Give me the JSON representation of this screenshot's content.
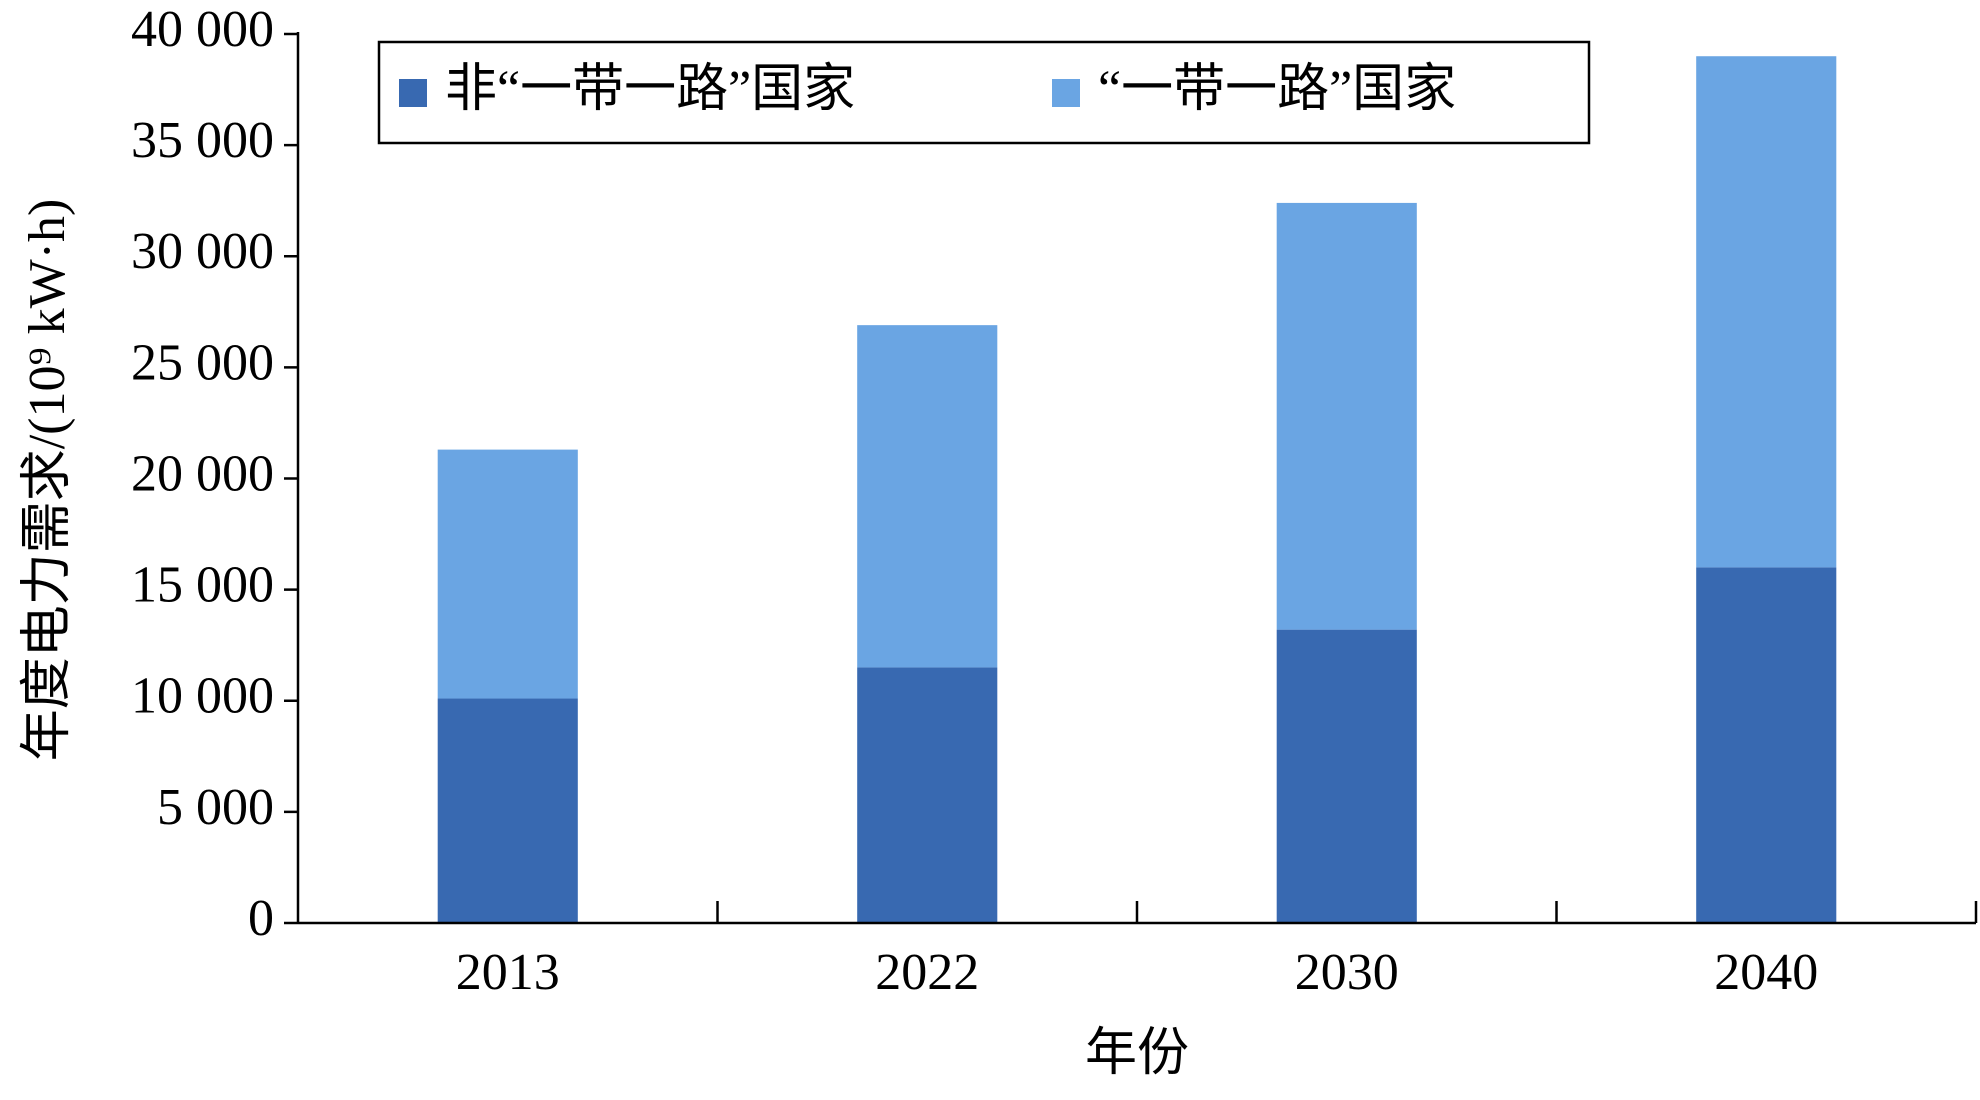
{
  "chart_data": {
    "type": "stacked_bar",
    "x_label": "年份",
    "y_label": "年度电力需求/(10⁹ kW·h)",
    "categories": [
      "2013",
      "2022",
      "2030",
      "2040"
    ],
    "series": [
      {
        "name": "非“一带一路”国家",
        "color": "#3869b1",
        "values": [
          10100,
          11500,
          13200,
          16000
        ]
      },
      {
        "name": "“一带一路”国家",
        "color": "#6aa5e3",
        "values": [
          11200,
          15400,
          19200,
          23000
        ]
      }
    ],
    "ylim": [
      0,
      40000
    ],
    "yticks": [
      0,
      {
        "value": 5000,
        "label": "5 000"
      },
      {
        "value": 10000,
        "label": "10 000"
      },
      {
        "value": 15000,
        "label": "15 000"
      },
      {
        "value": 20000,
        "label": "20 000"
      },
      {
        "value": 25000,
        "label": "25 000"
      },
      {
        "value": 30000,
        "label": "30 000"
      },
      {
        "value": 35000,
        "label": "35 000"
      },
      {
        "value": 40000,
        "label": "40 000"
      }
    ],
    "grid": false,
    "legend": "top"
  }
}
